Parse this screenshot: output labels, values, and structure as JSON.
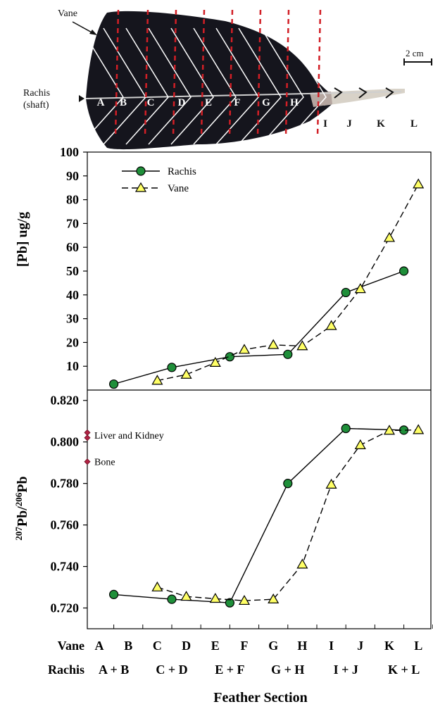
{
  "photo": {
    "labels": {
      "vane": "Vane",
      "rachis_line1": "Rachis",
      "rachis_line2": "(shaft)",
      "scale": "2 cm"
    },
    "sections": [
      "A",
      "B",
      "C",
      "D",
      "E",
      "F",
      "G",
      "H",
      "I",
      "J",
      "K",
      "L"
    ]
  },
  "chart_data": [
    {
      "type": "line",
      "ylabel": "[Pb] ug/g",
      "ylim": [
        0,
        100
      ],
      "yticks": [
        "10",
        "20",
        "30",
        "40",
        "50",
        "60",
        "70",
        "80",
        "90",
        "100"
      ],
      "legend_position": "top-left",
      "series": [
        {
          "name": "Rachis",
          "color": "#1f8f3a",
          "line": "solid",
          "points": [
            [
              0.5,
              2.5
            ],
            [
              2.5,
              9.5
            ],
            [
              4.5,
              14
            ],
            [
              6.5,
              15
            ],
            [
              8.5,
              41
            ],
            [
              10.5,
              50
            ]
          ]
        },
        {
          "name": "Vane",
          "color": "#ffff66",
          "line": "dashed",
          "points": [
            [
              2,
              4
            ],
            [
              3,
              6.5
            ],
            [
              4,
              11.5
            ],
            [
              5,
              17
            ],
            [
              6,
              19
            ],
            [
              7,
              18.5
            ],
            [
              8,
              27
            ],
            [
              9,
              42.5
            ],
            [
              10,
              64
            ],
            [
              11,
              86.5
            ]
          ]
        }
      ]
    },
    {
      "type": "line",
      "ylabel": "207Pb/206Pb",
      "ylim": [
        0.71,
        0.825
      ],
      "yticks": [
        "0.720",
        "0.740",
        "0.760",
        "0.780",
        "0.800",
        "0.820"
      ],
      "series": [
        {
          "name": "Rachis",
          "line": "solid",
          "points": [
            [
              0.5,
              0.7265
            ],
            [
              2.5,
              0.7242
            ],
            [
              4.5,
              0.7225
            ],
            [
              6.5,
              0.78
            ],
            [
              8.5,
              0.8065
            ],
            [
              10.5,
              0.8057
            ]
          ]
        },
        {
          "name": "Vane",
          "line": "dashed",
          "points": [
            [
              2,
              0.73
            ],
            [
              3,
              0.7255
            ],
            [
              4,
              0.7245
            ],
            [
              5,
              0.7235
            ],
            [
              6,
              0.7242
            ],
            [
              7,
              0.741
            ],
            [
              8,
              0.7795
            ],
            [
              9,
              0.7985
            ],
            [
              10,
              0.8055
            ],
            [
              11,
              0.8058
            ]
          ]
        }
      ],
      "reference_points": [
        {
          "label": "Liver and Kidney",
          "values": [
            0.8045,
            0.802
          ]
        },
        {
          "label": "Bone",
          "values": [
            0.7905
          ]
        }
      ]
    }
  ],
  "x_axis": {
    "vane_label": "Vane",
    "vane_ticks": [
      "A",
      "B",
      "C",
      "D",
      "E",
      "F",
      "G",
      "H",
      "I",
      "J",
      "K",
      "L"
    ],
    "rachis_label": "Rachis",
    "rachis_ticks": [
      "A + B",
      "C + D",
      "E + F",
      "G + H",
      "I + J",
      "K + L"
    ],
    "title": "Feather Section"
  }
}
